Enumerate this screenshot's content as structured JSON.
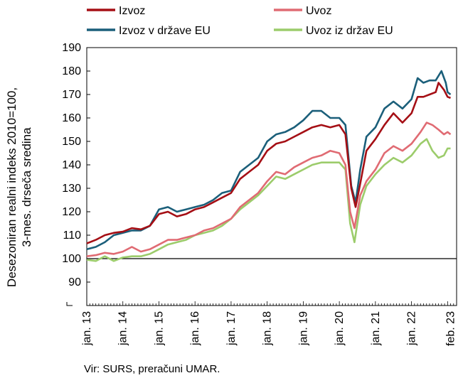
{
  "chart_data": {
    "type": "line",
    "ylabel_lines": [
      "Desezoniran realni indeks 2010=100,",
      "3-mes. drseča sredina"
    ],
    "ylim": [
      80,
      190
    ],
    "yticks": [
      90,
      100,
      110,
      120,
      130,
      140,
      150,
      160,
      170,
      180,
      190
    ],
    "xlim": [
      2013.0,
      2023.25
    ],
    "xticks": [
      {
        "x": 2013,
        "label": "jan. 13"
      },
      {
        "x": 2014,
        "label": "jan. 14"
      },
      {
        "x": 2015,
        "label": "jan. 15"
      },
      {
        "x": 2016,
        "label": "jan. 16"
      },
      {
        "x": 2017,
        "label": "jan. 17"
      },
      {
        "x": 2018,
        "label": "jan. 18"
      },
      {
        "x": 2019,
        "label": "jan. 19"
      },
      {
        "x": 2020,
        "label": "jan. 20"
      },
      {
        "x": 2021,
        "label": "jan. 21"
      },
      {
        "x": 2022,
        "label": "jan. 22"
      },
      {
        "x": 2023.083,
        "label": "feb. 23"
      }
    ],
    "reference_line": 100,
    "grid": false,
    "legend_position": "top",
    "series": [
      {
        "name": "Izvoz",
        "color": "#a50f15",
        "points": [
          [
            2013.0,
            106.5
          ],
          [
            2013.25,
            108
          ],
          [
            2013.5,
            110
          ],
          [
            2013.75,
            111
          ],
          [
            2014.0,
            111.5
          ],
          [
            2014.25,
            113
          ],
          [
            2014.5,
            112.5
          ],
          [
            2014.75,
            114
          ],
          [
            2015.0,
            119
          ],
          [
            2015.25,
            120
          ],
          [
            2015.5,
            118
          ],
          [
            2015.75,
            119
          ],
          [
            2016.0,
            121
          ],
          [
            2016.25,
            122
          ],
          [
            2016.5,
            124
          ],
          [
            2016.75,
            126
          ],
          [
            2017.0,
            128
          ],
          [
            2017.25,
            134
          ],
          [
            2017.5,
            137
          ],
          [
            2017.75,
            140
          ],
          [
            2018.0,
            146
          ],
          [
            2018.25,
            149
          ],
          [
            2018.5,
            150
          ],
          [
            2018.75,
            152
          ],
          [
            2019.0,
            154
          ],
          [
            2019.25,
            156
          ],
          [
            2019.5,
            157
          ],
          [
            2019.75,
            156
          ],
          [
            2020.0,
            157
          ],
          [
            2020.17,
            153
          ],
          [
            2020.33,
            130
          ],
          [
            2020.45,
            122
          ],
          [
            2020.58,
            132
          ],
          [
            2020.75,
            146
          ],
          [
            2021.0,
            151
          ],
          [
            2021.25,
            157
          ],
          [
            2021.5,
            162
          ],
          [
            2021.75,
            158
          ],
          [
            2022.0,
            162
          ],
          [
            2022.17,
            169
          ],
          [
            2022.33,
            169
          ],
          [
            2022.5,
            170
          ],
          [
            2022.67,
            171
          ],
          [
            2022.75,
            175
          ],
          [
            2022.9,
            172
          ],
          [
            2023.0,
            169
          ],
          [
            2023.083,
            168.5
          ]
        ]
      },
      {
        "name": "Uvoz",
        "color": "#e06b73",
        "points": [
          [
            2013.0,
            101
          ],
          [
            2013.25,
            101.5
          ],
          [
            2013.5,
            102.5
          ],
          [
            2013.75,
            102
          ],
          [
            2014.0,
            103
          ],
          [
            2014.25,
            105
          ],
          [
            2014.5,
            103
          ],
          [
            2014.75,
            104
          ],
          [
            2015.0,
            106
          ],
          [
            2015.25,
            108
          ],
          [
            2015.5,
            108
          ],
          [
            2015.75,
            109
          ],
          [
            2016.0,
            110
          ],
          [
            2016.25,
            112
          ],
          [
            2016.5,
            113
          ],
          [
            2016.75,
            115
          ],
          [
            2017.0,
            117
          ],
          [
            2017.25,
            122
          ],
          [
            2017.5,
            125
          ],
          [
            2017.75,
            128
          ],
          [
            2018.0,
            133
          ],
          [
            2018.25,
            137
          ],
          [
            2018.5,
            136
          ],
          [
            2018.75,
            139
          ],
          [
            2019.0,
            141
          ],
          [
            2019.25,
            143
          ],
          [
            2019.5,
            144
          ],
          [
            2019.75,
            146
          ],
          [
            2020.0,
            145
          ],
          [
            2020.17,
            140
          ],
          [
            2020.3,
            120
          ],
          [
            2020.42,
            113
          ],
          [
            2020.58,
            127
          ],
          [
            2020.75,
            133
          ],
          [
            2021.0,
            138
          ],
          [
            2021.25,
            145
          ],
          [
            2021.5,
            148
          ],
          [
            2021.75,
            146
          ],
          [
            2022.0,
            149
          ],
          [
            2022.25,
            154
          ],
          [
            2022.42,
            158
          ],
          [
            2022.58,
            157
          ],
          [
            2022.75,
            155
          ],
          [
            2022.9,
            153
          ],
          [
            2023.0,
            154
          ],
          [
            2023.083,
            153
          ]
        ]
      },
      {
        "name": "Izvoz v države EU",
        "color": "#1b5f7a",
        "points": [
          [
            2013.0,
            104
          ],
          [
            2013.25,
            105
          ],
          [
            2013.5,
            107
          ],
          [
            2013.75,
            110
          ],
          [
            2014.0,
            111
          ],
          [
            2014.25,
            112
          ],
          [
            2014.5,
            112
          ],
          [
            2014.75,
            114
          ],
          [
            2015.0,
            121
          ],
          [
            2015.25,
            122
          ],
          [
            2015.5,
            120
          ],
          [
            2015.75,
            121
          ],
          [
            2016.0,
            122
          ],
          [
            2016.25,
            123
          ],
          [
            2016.5,
            125
          ],
          [
            2016.75,
            128
          ],
          [
            2017.0,
            129
          ],
          [
            2017.25,
            137
          ],
          [
            2017.5,
            140
          ],
          [
            2017.75,
            143
          ],
          [
            2018.0,
            150
          ],
          [
            2018.25,
            153
          ],
          [
            2018.5,
            154
          ],
          [
            2018.75,
            156
          ],
          [
            2019.0,
            159
          ],
          [
            2019.25,
            163
          ],
          [
            2019.5,
            163
          ],
          [
            2019.75,
            160
          ],
          [
            2020.0,
            160
          ],
          [
            2020.17,
            157
          ],
          [
            2020.33,
            131
          ],
          [
            2020.45,
            124
          ],
          [
            2020.58,
            138
          ],
          [
            2020.75,
            152
          ],
          [
            2021.0,
            156
          ],
          [
            2021.25,
            164
          ],
          [
            2021.5,
            167
          ],
          [
            2021.75,
            164
          ],
          [
            2022.0,
            168
          ],
          [
            2022.17,
            177
          ],
          [
            2022.33,
            175
          ],
          [
            2022.5,
            176
          ],
          [
            2022.67,
            176
          ],
          [
            2022.83,
            180
          ],
          [
            2022.95,
            175
          ],
          [
            2023.0,
            171
          ],
          [
            2023.083,
            170
          ]
        ]
      },
      {
        "name": "Uvoz iz držav EU",
        "color": "#9ccc6b",
        "points": [
          [
            2013.0,
            99.5
          ],
          [
            2013.25,
            99
          ],
          [
            2013.5,
            101
          ],
          [
            2013.75,
            99
          ],
          [
            2014.0,
            100.5
          ],
          [
            2014.25,
            101
          ],
          [
            2014.5,
            101
          ],
          [
            2014.75,
            102
          ],
          [
            2015.0,
            104
          ],
          [
            2015.25,
            106
          ],
          [
            2015.5,
            107
          ],
          [
            2015.75,
            108
          ],
          [
            2016.0,
            110
          ],
          [
            2016.25,
            111
          ],
          [
            2016.5,
            112
          ],
          [
            2016.75,
            114
          ],
          [
            2017.0,
            117
          ],
          [
            2017.25,
            121
          ],
          [
            2017.5,
            124
          ],
          [
            2017.75,
            127
          ],
          [
            2018.0,
            131
          ],
          [
            2018.25,
            135
          ],
          [
            2018.5,
            134
          ],
          [
            2018.75,
            136
          ],
          [
            2019.0,
            138
          ],
          [
            2019.25,
            140
          ],
          [
            2019.5,
            141
          ],
          [
            2019.75,
            141
          ],
          [
            2020.0,
            141
          ],
          [
            2020.17,
            138
          ],
          [
            2020.3,
            115
          ],
          [
            2020.42,
            107
          ],
          [
            2020.58,
            123
          ],
          [
            2020.75,
            131
          ],
          [
            2021.0,
            136
          ],
          [
            2021.25,
            140
          ],
          [
            2021.5,
            143
          ],
          [
            2021.75,
            141
          ],
          [
            2022.0,
            144
          ],
          [
            2022.25,
            149
          ],
          [
            2022.42,
            151
          ],
          [
            2022.58,
            146
          ],
          [
            2022.75,
            143
          ],
          [
            2022.9,
            144
          ],
          [
            2023.0,
            147
          ],
          [
            2023.083,
            147
          ]
        ]
      }
    ]
  },
  "source_text": "Vir: SURS, preračuni UMAR."
}
